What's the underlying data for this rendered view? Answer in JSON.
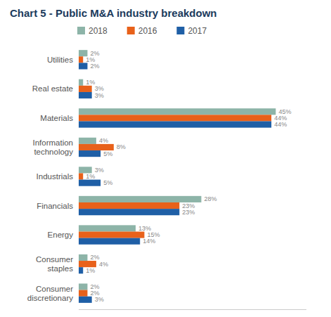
{
  "chart_data": {
    "type": "bar",
    "orientation": "horizontal",
    "title": "Chart 5 - Public M&A industry breakdown",
    "categories": [
      "Consumer\ndiscretionary",
      "Consumer\nstaples",
      "Energy",
      "Financials",
      "Industrials",
      "Information\ntechnology",
      "Materials",
      "Real estate",
      "Utilities"
    ],
    "series": [
      {
        "name": "2018",
        "color": "#8db4a8",
        "values": [
          2,
          2,
          13,
          28,
          3,
          4,
          45,
          1,
          2
        ],
        "value_labels": [
          "2%",
          "2%",
          "13%",
          "28%",
          "3%",
          "4%",
          "45%",
          "1%",
          "2%"
        ]
      },
      {
        "name": "2016",
        "color": "#e8611a",
        "values": [
          2,
          4,
          15,
          23,
          1,
          8,
          44,
          3,
          1
        ],
        "value_labels": [
          "2%",
          "4%",
          "15%",
          "23%",
          "1%",
          "8%",
          "44%",
          "3%",
          "1%"
        ]
      },
      {
        "name": "2017",
        "color": "#1f5fa6",
        "values": [
          3,
          1,
          14,
          23,
          5,
          5,
          44,
          3,
          2
        ],
        "value_labels": [
          "3%",
          "1%",
          "14%",
          "23%",
          "5%",
          "5%",
          "44%",
          "3%",
          "2%"
        ]
      }
    ],
    "xlim": [
      0,
      52
    ],
    "data_labels": true,
    "tick_labels": "y",
    "grid": false,
    "legend": "top"
  }
}
